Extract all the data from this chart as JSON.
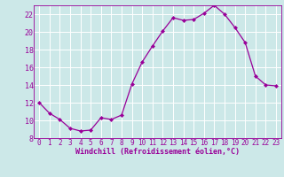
{
  "x": [
    0,
    1,
    2,
    3,
    4,
    5,
    6,
    7,
    8,
    9,
    10,
    11,
    12,
    13,
    14,
    15,
    16,
    17,
    18,
    19,
    20,
    21,
    22,
    23
  ],
  "y": [
    12.0,
    10.8,
    10.1,
    9.1,
    8.8,
    8.9,
    10.3,
    10.1,
    10.6,
    14.1,
    16.6,
    18.4,
    20.1,
    21.6,
    21.3,
    21.4,
    22.1,
    23.0,
    22.0,
    20.5,
    18.8,
    15.0,
    14.0,
    13.9
  ],
  "line_color": "#990099",
  "marker": "D",
  "marker_size": 2.0,
  "bg_color": "#cce8e8",
  "grid_color": "#b0d0d0",
  "xlabel": "Windchill (Refroidissement éolien,°C)",
  "xlabel_color": "#990099",
  "tick_color": "#990099",
  "label_color": "#990099",
  "ylim": [
    8,
    23
  ],
  "xlim": [
    -0.5,
    23.5
  ],
  "yticks": [
    8,
    10,
    12,
    14,
    16,
    18,
    20,
    22
  ],
  "xticks": [
    0,
    1,
    2,
    3,
    4,
    5,
    6,
    7,
    8,
    9,
    10,
    11,
    12,
    13,
    14,
    15,
    16,
    17,
    18,
    19,
    20,
    21,
    22,
    23
  ],
  "title": "",
  "tick_fontsize": 5.5,
  "xlabel_fontsize": 6.0
}
